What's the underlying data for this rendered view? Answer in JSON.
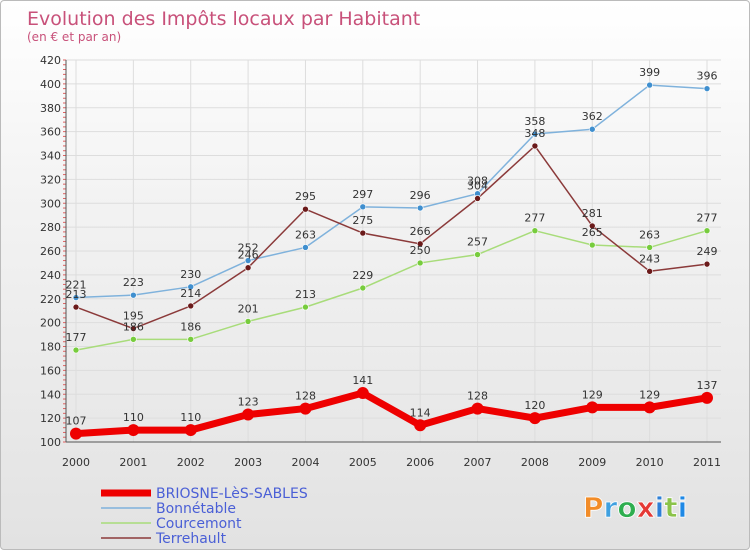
{
  "chart_data": {
    "type": "line",
    "title": "Evolution des Impôts locaux par Habitant",
    "subtitle": "(en € et par an)",
    "xlabel": "",
    "ylabel": "",
    "ylim": [
      100,
      420
    ],
    "yticks": [
      100,
      120,
      140,
      160,
      180,
      200,
      220,
      240,
      260,
      280,
      300,
      320,
      340,
      360,
      380,
      400,
      420
    ],
    "grid": true,
    "categories": [
      "2000",
      "2001",
      "2002",
      "2003",
      "2004",
      "2005",
      "2006",
      "2007",
      "2008",
      "2009",
      "2010",
      "2011"
    ],
    "legend_position": "bottom-left",
    "series": [
      {
        "name": "BRIOSNE-LèS-SABLES",
        "values": [
          107,
          110,
          110,
          123,
          128,
          141,
          114,
          128,
          120,
          129,
          129,
          137
        ],
        "color": "#ee0000",
        "highlight": true
      },
      {
        "name": "Bonnétable",
        "values": [
          221,
          223,
          230,
          252,
          263,
          297,
          296,
          308,
          358,
          362,
          399,
          396
        ],
        "color": "#7fb2dc",
        "marker_color": "#3f8fcf",
        "highlight": false
      },
      {
        "name": "Courcemont",
        "values": [
          177,
          186,
          186,
          201,
          213,
          229,
          250,
          257,
          277,
          265,
          263,
          277
        ],
        "color": "#a8dc7a",
        "marker_color": "#77cc3d",
        "highlight": false
      },
      {
        "name": "Terrehault",
        "values": [
          213,
          195,
          214,
          246,
          295,
          275,
          266,
          304,
          348,
          281,
          243,
          249
        ],
        "color": "#8b3a3a",
        "marker_color": "#6b1a1a",
        "highlight": false
      }
    ]
  },
  "logo": {
    "text": "Proxiti",
    "colors": [
      "#f28c28",
      "#3fa0e0",
      "#2eae4f",
      "#e53935",
      "#2e7fd6",
      "#8bc34a",
      "#1e88e5"
    ]
  }
}
